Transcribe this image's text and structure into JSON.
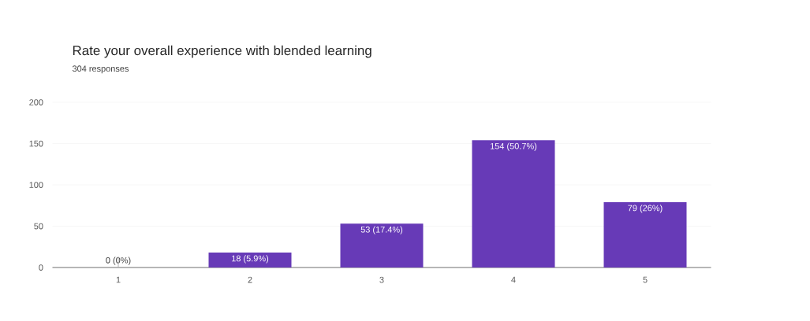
{
  "chart_data": {
    "type": "bar",
    "title": "Rate your overall experience with blended learning",
    "subtitle": "304 responses",
    "categories": [
      "1",
      "2",
      "3",
      "4",
      "5"
    ],
    "values": [
      0,
      18,
      53,
      154,
      79
    ],
    "value_labels": [
      "0 (0%)",
      "18 (5.9%)",
      "53 (17.4%)",
      "154 (50.7%)",
      "79 (26%)"
    ],
    "color": "#673ab7",
    "ylim": [
      0,
      200
    ],
    "yticks": [
      0,
      50,
      100,
      150,
      200
    ],
    "grid": "y"
  }
}
